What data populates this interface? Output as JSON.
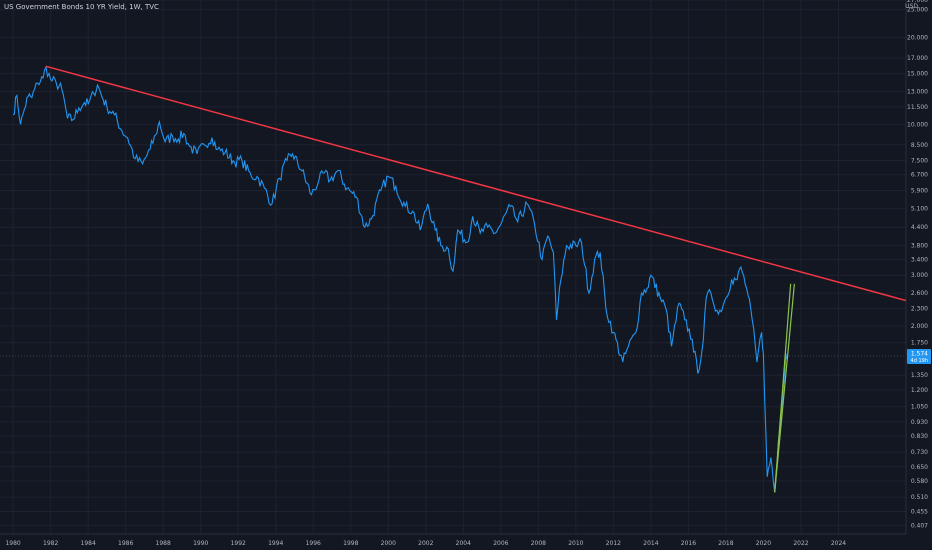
{
  "header": {
    "title": "US Government Bonds 10 YR Yield, 1W, TVC",
    "currency": "USD"
  },
  "price_badge": {
    "value": "1.574",
    "sub": "4d 19h"
  },
  "colors": {
    "background": "#131722",
    "grid": "#1e2230",
    "series": "#2196f3",
    "resistance": "#f23645",
    "channel": "#8bc34a"
  },
  "chart_data": {
    "type": "line",
    "title": "US Government Bonds 10 YR Yield, 1W, TVC",
    "xlabel": "",
    "ylabel": "",
    "y_scale": "log",
    "xlim": [
      1979.3,
      2027.6
    ],
    "ylim": [
      0.38,
      27
    ],
    "grid": true,
    "y_ticks": [
      "27.000",
      "25.000",
      "20.000",
      "17.000",
      "15.000",
      "13.000",
      "11.500",
      "10.000",
      "8.500",
      "7.500",
      "6.700",
      "5.900",
      "5.100",
      "4.400",
      "3.800",
      "3.400",
      "3.000",
      "2.600",
      "2.300",
      "2.000",
      "1.750",
      "1.350",
      "1.200",
      "1.050",
      "0.930",
      "0.830",
      "0.730",
      "0.650",
      "0.580",
      "0.510",
      "0.455",
      "0.407"
    ],
    "x_ticks": [
      "1980",
      "1982",
      "1984",
      "1986",
      "1988",
      "1990",
      "1992",
      "1994",
      "1996",
      "1998",
      "2000",
      "2002",
      "2004",
      "2006",
      "2008",
      "2010",
      "2012",
      "2014",
      "2016",
      "2018",
      "2020",
      "2022",
      "2024"
    ],
    "series": [
      {
        "values": [
          [
            1980.0,
            10.8
          ],
          [
            1980.2,
            12.6
          ],
          [
            1980.4,
            10.0
          ],
          [
            1980.6,
            11.3
          ],
          [
            1980.8,
            12.5
          ],
          [
            1981.0,
            12.4
          ],
          [
            1981.3,
            13.9
          ],
          [
            1981.6,
            14.5
          ],
          [
            1981.75,
            15.8
          ],
          [
            1982.0,
            14.3
          ],
          [
            1982.3,
            13.9
          ],
          [
            1982.6,
            13.2
          ],
          [
            1982.9,
            10.5
          ],
          [
            1983.2,
            10.4
          ],
          [
            1983.5,
            11.4
          ],
          [
            1983.8,
            11.9
          ],
          [
            1984.0,
            11.8
          ],
          [
            1984.3,
            12.8
          ],
          [
            1984.5,
            13.7
          ],
          [
            1984.8,
            12.2
          ],
          [
            1985.0,
            11.5
          ],
          [
            1985.4,
            10.8
          ],
          [
            1985.8,
            9.5
          ],
          [
            1986.1,
            9.0
          ],
          [
            1986.5,
            7.6
          ],
          [
            1986.9,
            7.3
          ],
          [
            1987.3,
            8.2
          ],
          [
            1987.6,
            9.2
          ],
          [
            1987.8,
            10.2
          ],
          [
            1988.1,
            8.7
          ],
          [
            1988.5,
            9.1
          ],
          [
            1988.8,
            8.9
          ],
          [
            1989.1,
            9.3
          ],
          [
            1989.4,
            8.4
          ],
          [
            1989.8,
            7.9
          ],
          [
            1990.2,
            8.5
          ],
          [
            1990.6,
            9.0
          ],
          [
            1990.9,
            8.2
          ],
          [
            1991.3,
            8.0
          ],
          [
            1991.8,
            7.4
          ],
          [
            1992.2,
            7.5
          ],
          [
            1992.7,
            6.6
          ],
          [
            1993.0,
            6.6
          ],
          [
            1993.4,
            6.0
          ],
          [
            1993.8,
            5.3
          ],
          [
            1994.2,
            6.5
          ],
          [
            1994.6,
            7.5
          ],
          [
            1994.9,
            7.9
          ],
          [
            1995.4,
            6.9
          ],
          [
            1995.9,
            5.7
          ],
          [
            1996.3,
            6.4
          ],
          [
            1996.6,
            6.8
          ],
          [
            1996.9,
            6.4
          ],
          [
            1997.3,
            6.9
          ],
          [
            1997.8,
            6.0
          ],
          [
            1998.3,
            5.6
          ],
          [
            1998.75,
            4.4
          ],
          [
            1999.1,
            4.7
          ],
          [
            1999.6,
            5.9
          ],
          [
            2000.0,
            6.6
          ],
          [
            2000.4,
            6.1
          ],
          [
            2000.9,
            5.2
          ],
          [
            2001.3,
            5.0
          ],
          [
            2001.7,
            4.3
          ],
          [
            2002.1,
            5.3
          ],
          [
            2002.5,
            4.3
          ],
          [
            2002.8,
            3.8
          ],
          [
            2003.2,
            3.7
          ],
          [
            2003.45,
            3.1
          ],
          [
            2003.7,
            4.3
          ],
          [
            2004.2,
            3.9
          ],
          [
            2004.5,
            4.8
          ],
          [
            2004.9,
            4.2
          ],
          [
            2005.3,
            4.4
          ],
          [
            2005.7,
            4.2
          ],
          [
            2006.0,
            4.5
          ],
          [
            2006.5,
            5.2
          ],
          [
            2006.9,
            4.6
          ],
          [
            2007.4,
            5.3
          ],
          [
            2007.8,
            4.5
          ],
          [
            2008.2,
            3.4
          ],
          [
            2008.5,
            4.1
          ],
          [
            2008.8,
            3.6
          ],
          [
            2008.97,
            2.1
          ],
          [
            2009.2,
            2.9
          ],
          [
            2009.5,
            3.8
          ],
          [
            2010.0,
            3.8
          ],
          [
            2010.3,
            3.9
          ],
          [
            2010.7,
            2.6
          ],
          [
            2011.0,
            3.4
          ],
          [
            2011.3,
            3.6
          ],
          [
            2011.6,
            2.3
          ],
          [
            2012.0,
            1.9
          ],
          [
            2012.5,
            1.5
          ],
          [
            2012.8,
            1.7
          ],
          [
            2013.2,
            1.9
          ],
          [
            2013.5,
            2.6
          ],
          [
            2013.8,
            2.7
          ],
          [
            2014.0,
            3.0
          ],
          [
            2014.5,
            2.5
          ],
          [
            2014.8,
            2.3
          ],
          [
            2015.1,
            1.7
          ],
          [
            2015.5,
            2.4
          ],
          [
            2015.8,
            2.1
          ],
          [
            2016.2,
            1.8
          ],
          [
            2016.5,
            1.37
          ],
          [
            2016.8,
            1.8
          ],
          [
            2016.95,
            2.5
          ],
          [
            2017.2,
            2.6
          ],
          [
            2017.6,
            2.2
          ],
          [
            2018.0,
            2.5
          ],
          [
            2018.3,
            2.9
          ],
          [
            2018.6,
            2.9
          ],
          [
            2018.8,
            3.2
          ],
          [
            2019.1,
            2.7
          ],
          [
            2019.4,
            2.1
          ],
          [
            2019.65,
            1.5
          ],
          [
            2019.9,
            1.9
          ],
          [
            2020.0,
            1.6
          ],
          [
            2020.2,
            0.6
          ],
          [
            2020.4,
            0.7
          ],
          [
            2020.6,
            0.53
          ],
          [
            2020.8,
            0.8
          ],
          [
            2021.0,
            1.1
          ],
          [
            2021.2,
            1.6
          ],
          [
            2021.3,
            1.574
          ]
        ]
      }
    ],
    "trendlines": [
      {
        "name": "resistance",
        "color": "#f23645",
        "from": [
          1981.75,
          15.9
        ],
        "to": [
          2027.6,
          2.45
        ]
      },
      {
        "name": "channel-left",
        "color": "#8bc34a",
        "from": [
          2020.6,
          0.53
        ],
        "to": [
          2021.45,
          2.8
        ]
      },
      {
        "name": "channel-right",
        "color": "#8bc34a",
        "from": [
          2020.6,
          0.53
        ],
        "to": [
          2021.65,
          2.8
        ]
      }
    ]
  }
}
